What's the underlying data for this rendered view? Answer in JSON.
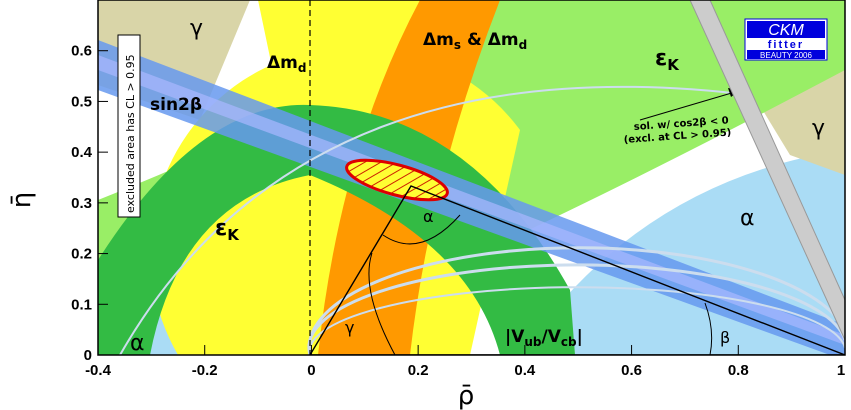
{
  "chart_data": {
    "type": "contour",
    "title": "",
    "xlabel": "ρ̄",
    "ylabel": "η̄",
    "xlim": [
      -0.4,
      1.0
    ],
    "ylim": [
      0,
      0.7
    ],
    "x_ticks": [
      "-0.4",
      "-0.2",
      "0",
      "0.2",
      "0.4",
      "0.6",
      "0.8",
      "1"
    ],
    "y_ticks": [
      "0",
      "0.1",
      "0.2",
      "0.3",
      "0.4",
      "0.5",
      "0.6"
    ],
    "best_fit_apex": {
      "rho": 0.19,
      "eta": 0.33
    },
    "fit_region_center": {
      "rho": 0.12,
      "eta": 0.36
    },
    "constraints": [
      {
        "label": "Δm_d",
        "color": "#ffff33"
      },
      {
        "label": "Δm_s & Δm_d",
        "color": "#ff9900"
      },
      {
        "label": "ε_K",
        "color": "#33bb44"
      },
      {
        "label": "ε_K",
        "color": "#99ee66"
      },
      {
        "label": "sin2β",
        "color": "#6699ee"
      },
      {
        "label": "|V_ub/V_cb|",
        "color": "#33bb44"
      },
      {
        "label": "α",
        "color": "#aadcf5"
      },
      {
        "label": "γ",
        "color": "#d9d5a8"
      },
      {
        "label": "β",
        "color": "#000000"
      }
    ]
  },
  "labels": {
    "gamma_top": "γ",
    "gamma_right": "γ",
    "gamma_tri": "γ",
    "alpha_left": "α",
    "alpha_right": "α",
    "alpha_tri": "α",
    "beta_tri": "β",
    "dmd": "Δm",
    "dmd_sub": "d",
    "dms": "Δm",
    "dms_sub": "s",
    "dms_amp": " & Δm",
    "dms_sub2": "d",
    "epsk": "ε",
    "epsk_sub": "K",
    "sin2b": "sin2β",
    "vub_pre": "|V",
    "vub_sub1": "ub",
    "vub_mid": "/V",
    "vub_sub2": "cb",
    "vub_post": "|",
    "excluded": "excluded area has CL > 0.95",
    "sol_line1": "sol. w/ cos2β < 0",
    "sol_line2": "(excl. at CL > 0.95)"
  },
  "logo": {
    "line1": "CKM",
    "line2": "fitter",
    "line3": "BEAUTY 2006",
    "color": "#0000dd"
  }
}
